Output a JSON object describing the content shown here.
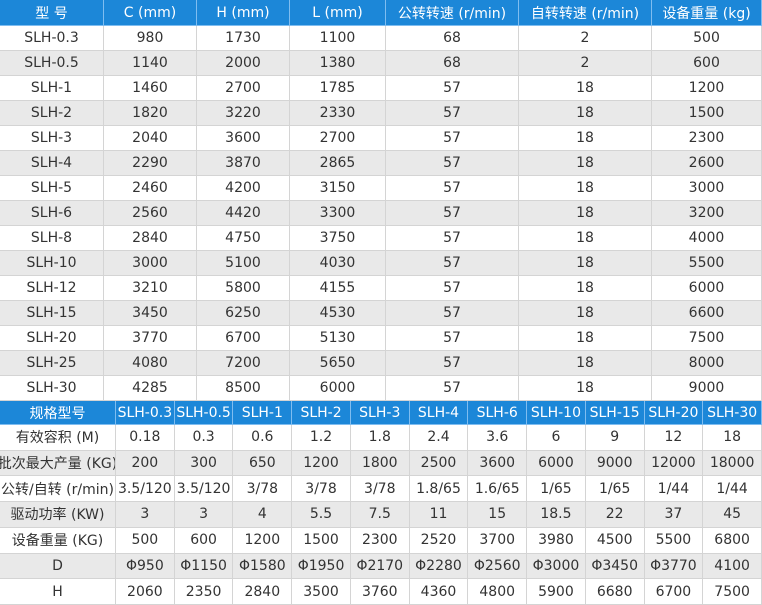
{
  "table1": {
    "header": [
      "型 号",
      "C (mm)",
      "H (mm)",
      "L (mm)",
      "公转转速 (r/min)",
      "自转转速 (r/min)",
      "设备重量 (kg)"
    ],
    "rows": [
      [
        "SLH-0.3",
        "980",
        "1730",
        "1100",
        "68",
        "2",
        "500"
      ],
      [
        "SLH-0.5",
        "1140",
        "2000",
        "1380",
        "68",
        "2",
        "600"
      ],
      [
        "SLH-1",
        "1460",
        "2700",
        "1785",
        "57",
        "18",
        "1200"
      ],
      [
        "SLH-2",
        "1820",
        "3220",
        "2330",
        "57",
        "18",
        "1500"
      ],
      [
        "SLH-3",
        "2040",
        "3600",
        "2700",
        "57",
        "18",
        "2300"
      ],
      [
        "SLH-4",
        "2290",
        "3870",
        "2865",
        "57",
        "18",
        "2600"
      ],
      [
        "SLH-5",
        "2460",
        "4200",
        "3150",
        "57",
        "18",
        "3000"
      ],
      [
        "SLH-6",
        "2560",
        "4420",
        "3300",
        "57",
        "18",
        "3200"
      ],
      [
        "SLH-8",
        "2840",
        "4750",
        "3750",
        "57",
        "18",
        "4000"
      ],
      [
        "SLH-10",
        "3000",
        "5100",
        "4030",
        "57",
        "18",
        "5500"
      ],
      [
        "SLH-12",
        "3210",
        "5800",
        "4155",
        "57",
        "18",
        "6000"
      ],
      [
        "SLH-15",
        "3450",
        "6250",
        "4530",
        "57",
        "18",
        "6600"
      ],
      [
        "SLH-20",
        "3770",
        "6700",
        "5130",
        "57",
        "18",
        "7500"
      ],
      [
        "SLH-25",
        "4080",
        "7200",
        "5650",
        "57",
        "18",
        "8000"
      ],
      [
        "SLH-30",
        "4285",
        "8500",
        "6000",
        "57",
        "18",
        "9000"
      ]
    ]
  },
  "table2": {
    "header": [
      "规格型号",
      "SLH-0.3",
      "SLH-0.5",
      "SLH-1",
      "SLH-2",
      "SLH-3",
      "SLH-4",
      "SLH-6",
      "SLH-10",
      "SLH-15",
      "SLH-20",
      "SLH-30"
    ],
    "rows": [
      [
        "有效容积 (M)",
        "0.18",
        "0.3",
        "0.6",
        "1.2",
        "1.8",
        "2.4",
        "3.6",
        "6",
        "9",
        "12",
        "18"
      ],
      [
        "批次最大产量 (KG)",
        "200",
        "300",
        "650",
        "1200",
        "1800",
        "2500",
        "3600",
        "6000",
        "9000",
        "12000",
        "18000"
      ],
      [
        "公转/自转 (r/min)",
        "3.5/120",
        "3.5/120",
        "3/78",
        "3/78",
        "3/78",
        "1.8/65",
        "1.6/65",
        "1/65",
        "1/65",
        "1/44",
        "1/44"
      ],
      [
        "驱动功率 (KW)",
        "3",
        "3",
        "4",
        "5.5",
        "7.5",
        "11",
        "15",
        "18.5",
        "22",
        "37",
        "45"
      ],
      [
        "设备重量 (KG)",
        "500",
        "600",
        "1200",
        "1500",
        "2300",
        "2520",
        "3700",
        "3980",
        "4500",
        "5500",
        "6800"
      ],
      [
        "D",
        "Φ950",
        "Φ1150",
        "Φ1580",
        "Φ1950",
        "Φ2170",
        "Φ2280",
        "Φ2560",
        "Φ3000",
        "Φ3450",
        "Φ3770",
        "4100"
      ],
      [
        "H",
        "2060",
        "2350",
        "2840",
        "3500",
        "3760",
        "4360",
        "4800",
        "5900",
        "6680",
        "6700",
        "7500"
      ]
    ]
  }
}
